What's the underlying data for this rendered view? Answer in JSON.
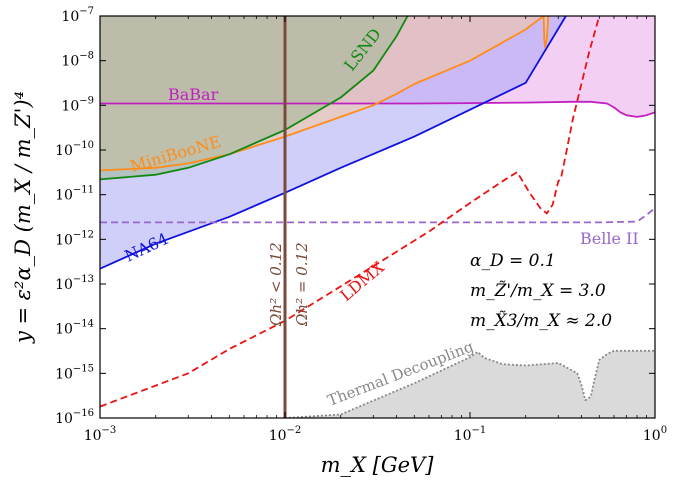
{
  "chart_data": {
    "type": "area",
    "xscale": "log",
    "yscale": "log",
    "xlim": [
      0.001,
      1
    ],
    "ylim": [
      1e-16,
      1e-07
    ],
    "xlabel": "m_X [GeV]",
    "ylabel": "y = ε²α_D (m_X / m_Z')⁴",
    "x_ticks": [
      0.001,
      0.01,
      0.1,
      1
    ],
    "x_tick_labels": [
      "10−3",
      "10−2",
      "10−1",
      "100"
    ],
    "y_ticks": [
      1e-16,
      1e-15,
      1e-14,
      1e-13,
      1e-12,
      1e-11,
      1e-10,
      1e-09,
      1e-08,
      1e-07
    ],
    "y_tick_labels": [
      "10−16",
      "10−15",
      "10−14",
      "10−13",
      "10−12",
      "10−11",
      "10−10",
      "10−9",
      "10−8",
      "10−7"
    ],
    "parameters": {
      "alpha": "α_D = 0.1",
      "mass_ratio_z": "m_Z̃'/m_X = 3.0",
      "mass_ratio_x3": "m_X̃3/m_X ≈ 2.0"
    },
    "series": [
      {
        "name": "BaBar",
        "style": "solid",
        "color": "#c020c0",
        "fill": "#e9a8e9",
        "x": [
          0.001,
          0.005,
          0.01,
          0.05,
          0.1,
          0.2,
          0.35,
          0.45,
          0.55,
          0.6,
          0.65,
          0.7,
          0.8,
          0.9,
          1.0
        ],
        "y": [
          1.1e-09,
          1.1e-09,
          1.1e-09,
          1.1e-09,
          1.12e-09,
          1.15e-09,
          1.2e-09,
          1.2e-09,
          1.1e-09,
          9e-10,
          7e-10,
          6e-10,
          5.5e-10,
          6e-10,
          7e-10
        ]
      },
      {
        "name": "NA64",
        "style": "solid",
        "color": "#1010e0",
        "fill": "#a8a8f4",
        "x": [
          0.001,
          0.002,
          0.005,
          0.01,
          0.02,
          0.05,
          0.1,
          0.2,
          0.33
        ],
        "y": [
          2.2e-13,
          8e-13,
          3.2e-12,
          1.1e-11,
          4e-11,
          2e-10,
          8e-10,
          3.2e-09,
          1e-07
        ]
      },
      {
        "name": "MiniBooNE",
        "style": "solid",
        "color": "#ff8c1a",
        "fill": "#f5c9a0",
        "x": [
          0.001,
          0.002,
          0.003,
          0.005,
          0.01,
          0.02,
          0.03,
          0.04,
          0.05,
          0.1,
          0.2,
          0.25,
          0.252,
          0.255,
          0.26,
          0.265,
          0.27
        ],
        "y": [
          3.5e-11,
          4e-11,
          5e-11,
          8e-11,
          2e-10,
          5.5e-10,
          1e-09,
          1.8e-09,
          3e-09,
          1e-08,
          5e-08,
          1e-07,
          3e-08,
          2e-08,
          3e-08,
          1e-07,
          1e-07
        ]
      },
      {
        "name": "LSND",
        "style": "solid",
        "color": "#118811",
        "fill": "#9fb894",
        "x": [
          0.001,
          0.002,
          0.003,
          0.005,
          0.01,
          0.02,
          0.03,
          0.04,
          0.046
        ],
        "y": [
          2.2e-11,
          2.8e-11,
          4e-11,
          8e-11,
          2.8e-10,
          1.5e-09,
          6e-09,
          3.5e-08,
          1e-07
        ]
      },
      {
        "name": "Belle II",
        "style": "dashed",
        "color": "#9966cc",
        "x": [
          0.001,
          0.01,
          0.1,
          0.5,
          0.8,
          0.9,
          1.0
        ],
        "y": [
          2.4e-12,
          2.4e-12,
          2.4e-12,
          2.4e-12,
          2.5e-12,
          3.5e-12,
          5e-12
        ]
      },
      {
        "name": "LDMX",
        "style": "dashed",
        "color": "#ee1111",
        "x": [
          0.001,
          0.003,
          0.005,
          0.01,
          0.03,
          0.06,
          0.1,
          0.15,
          0.18,
          0.21,
          0.24,
          0.26,
          0.28,
          0.3,
          0.31,
          0.33,
          0.36,
          0.4,
          0.44,
          0.5
        ],
        "y": [
          1.8e-16,
          1e-15,
          3.5e-15,
          1.5e-14,
          2.5e-13,
          1.5e-12,
          6.5e-12,
          2e-11,
          3.2e-11,
          1.1e-11,
          5e-12,
          3.8e-12,
          6e-12,
          2e-11,
          2.3e-11,
          8e-11,
          5e-10,
          3e-09,
          1.5e-08,
          1e-07
        ]
      },
      {
        "name": "Thermal Decoupling",
        "style": "dotted",
        "color": "#888888",
        "fill": "#d6d6d6",
        "x": [
          0.01,
          0.02,
          0.05,
          0.1,
          0.11,
          0.12,
          0.15,
          0.2,
          0.3,
          0.38,
          0.4,
          0.42,
          0.45,
          0.47,
          0.5,
          0.55,
          0.6,
          0.7,
          1.0
        ],
        "y": [
          1e-16,
          1.2e-16,
          6e-16,
          2.3e-15,
          3e-15,
          2.2e-15,
          1.6e-15,
          1.5e-15,
          1.7e-15,
          1e-15,
          5.5e-16,
          2.5e-16,
          3e-16,
          7e-16,
          2e-15,
          2.7e-15,
          3.2e-15,
          3.2e-15,
          3.2e-15
        ]
      },
      {
        "name": "Ωh² < 0.12",
        "style": "solid",
        "color": "#7a4a3a",
        "x": [
          0.01,
          0.01
        ],
        "y": [
          1e-16,
          1e-07
        ]
      }
    ],
    "labels": {
      "babar": "BaBar",
      "lsnd": "LSND",
      "miniboone": "MiniBooNE",
      "na64": "NA64",
      "belle": "Belle II",
      "ldmx": "LDMX",
      "thermal": "Thermal Decoupling",
      "relic_lt": "Ωh² < 0.12",
      "relic_eq": "Ωh² = 0.12"
    },
    "colors": {
      "babar": "#c020c0",
      "na64": "#1010e0",
      "miniboone": "#ff8c1a",
      "lsnd": "#118811",
      "belle": "#9966cc",
      "ldmx": "#ee1111",
      "thermal": "#888888",
      "relic": "#7a4a3a"
    }
  }
}
